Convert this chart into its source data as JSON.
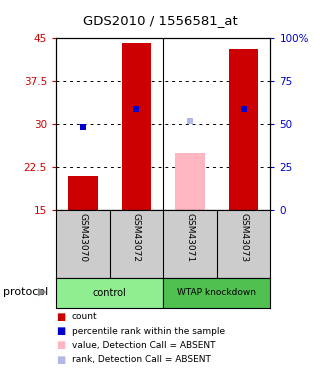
{
  "title": "GDS2010 / 1556581_at",
  "samples": [
    "GSM43070",
    "GSM43072",
    "GSM43071",
    "GSM43073"
  ],
  "bar_values": [
    21.0,
    44.0,
    25.0,
    43.0
  ],
  "bar_colors": [
    "#cc0000",
    "#cc0000",
    "#ffb6c1",
    "#cc0000"
  ],
  "rank_values": [
    29.5,
    32.5,
    30.5,
    32.5
  ],
  "rank_colors": [
    "#0000cc",
    "#0000cc",
    "#b0b8e8",
    "#0000cc"
  ],
  "bar_bottom": 15,
  "ylim_left": [
    15,
    45
  ],
  "ylim_right": [
    0,
    100
  ],
  "yticks_left": [
    15,
    22.5,
    30,
    37.5,
    45
  ],
  "ytick_labels_left": [
    "15",
    "22.5",
    "30",
    "37.5",
    "45"
  ],
  "yticks_right": [
    0,
    25,
    50,
    75,
    100
  ],
  "ytick_labels_right": [
    "0",
    "25",
    "50",
    "75",
    "100%"
  ],
  "left_axis_color": "#cc0000",
  "right_axis_color": "#0000cc",
  "background_color": "#ffffff",
  "legend_items": [
    {
      "color": "#cc0000",
      "label": "count"
    },
    {
      "color": "#0000cc",
      "label": "percentile rank within the sample"
    },
    {
      "color": "#ffb6c1",
      "label": "value, Detection Call = ABSENT"
    },
    {
      "color": "#b0b8e8",
      "label": "rank, Detection Call = ABSENT"
    }
  ],
  "group_labels": [
    "control",
    "WTAP knockdown"
  ],
  "group_colors": [
    "#90EE90",
    "#50C050"
  ],
  "protocol_label": "protocol",
  "bar_width": 0.55,
  "rank_marker_size": 5
}
